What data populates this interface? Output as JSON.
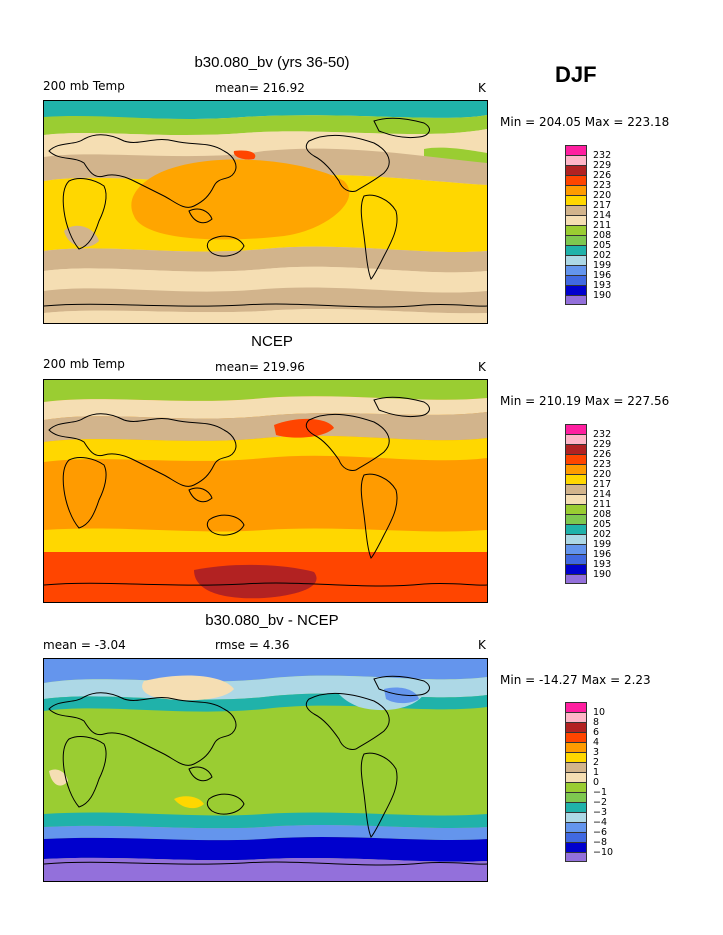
{
  "season": "DJF",
  "panels": [
    {
      "title": "b30.080_bv (yrs 36-50)",
      "left_label": "200 mb Temp",
      "center_label": "mean= 216.92",
      "right_label": "K",
      "minmax": "Min = 204.05 Max = 223.18",
      "legend": [
        "232",
        "229",
        "226",
        "223",
        "220",
        "217",
        "214",
        "211",
        "208",
        "205",
        "202",
        "199",
        "196",
        "193",
        "190"
      ]
    },
    {
      "title": "NCEP",
      "left_label": "200 mb Temp",
      "center_label": "mean= 219.96",
      "right_label": "K",
      "minmax": "Min = 210.19 Max = 227.56",
      "legend": [
        "232",
        "229",
        "226",
        "223",
        "220",
        "217",
        "214",
        "211",
        "208",
        "205",
        "202",
        "199",
        "196",
        "193",
        "190"
      ]
    },
    {
      "title": "b30.080_bv - NCEP",
      "left_label": "mean =   -3.04",
      "center_label": "rmse =    4.36",
      "right_label": "K",
      "minmax": "Min = -14.27 Max =    2.23",
      "legend": [
        "10",
        "8",
        "6",
        "4",
        "3",
        "2",
        "1",
        "0",
        "−1",
        "−2",
        "−3",
        "−4",
        "−6",
        "−8",
        "−10"
      ]
    }
  ],
  "legend_colors": [
    "#ff1fa0",
    "#ffb6c8",
    "#b22222",
    "#ff4500",
    "#ff9b00",
    "#ffd700",
    "#d2b48c",
    "#f5deb3",
    "#9acd32",
    "#7ec850",
    "#20b2aa",
    "#add8e6",
    "#6495ed",
    "#4169e1",
    "#0000cd",
    "#9370db"
  ]
}
